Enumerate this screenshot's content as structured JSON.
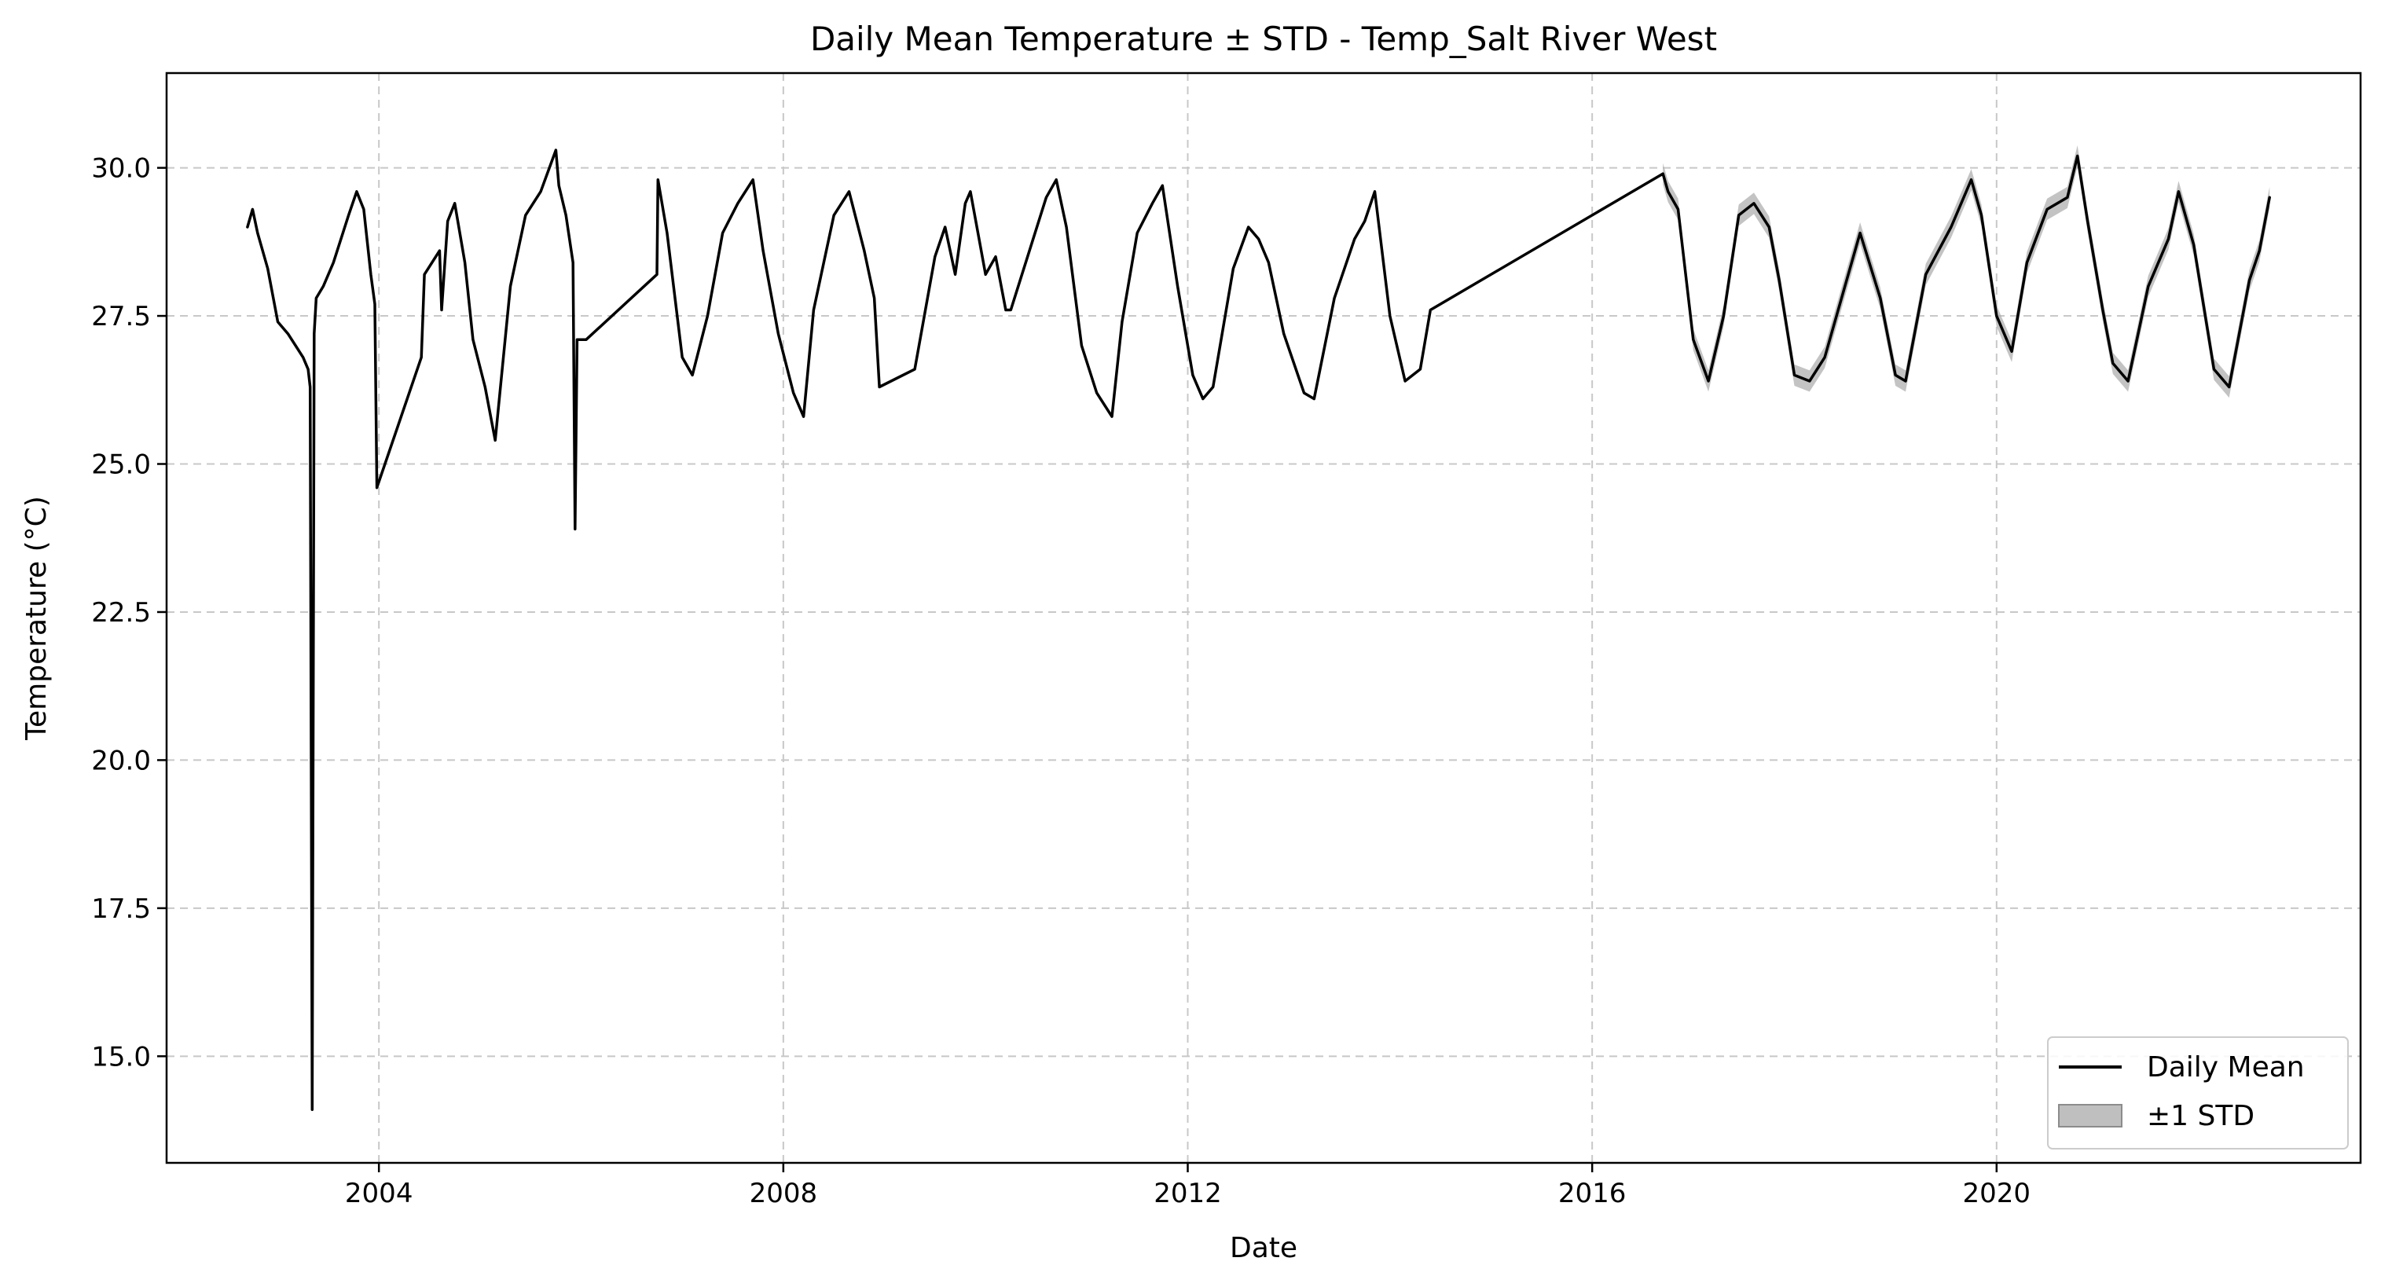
{
  "chart_data": {
    "type": "line",
    "title": "Daily Mean Temperature ± STD - Temp_Salt River West",
    "xlabel": "Date",
    "ylabel": "Temperature (°C)",
    "xlim": [
      2001.9,
      2023.6
    ],
    "ylim": [
      13.2,
      31.6
    ],
    "xticks": [
      2004,
      2008,
      2012,
      2016,
      2020
    ],
    "xtick_labels": [
      "2004",
      "2008",
      "2012",
      "2016",
      "2020"
    ],
    "yticks": [
      15.0,
      17.5,
      20.0,
      22.5,
      25.0,
      27.5,
      30.0
    ],
    "ytick_labels": [
      "15.0",
      "17.5",
      "20.0",
      "22.5",
      "25.0",
      "27.5",
      "30.0"
    ],
    "grid": true,
    "legend_position": "lower-right",
    "colors": {
      "mean_line": "#000000",
      "std_band": "#a9a9a9"
    },
    "series": [
      {
        "name": "Daily Mean",
        "x": [
          2002.7,
          2002.75,
          2002.8,
          2002.9,
          2003.0,
          2003.1,
          2003.25,
          2003.3,
          2003.32,
          2003.34,
          2003.36,
          2003.38,
          2003.45,
          2003.55,
          2003.7,
          2003.78,
          2003.85,
          2003.92,
          2003.96,
          2003.98,
          2004.42,
          2004.45,
          2004.6,
          2004.62,
          2004.68,
          2004.75,
          2004.85,
          2004.93,
          2005.05,
          2005.15,
          2005.3,
          2005.45,
          2005.6,
          2005.75,
          2005.78,
          2005.85,
          2005.92,
          2005.94,
          2005.96,
          2006.05,
          2006.75,
          2006.76,
          2006.85,
          2007.0,
          2007.1,
          2007.25,
          2007.4,
          2007.55,
          2007.7,
          2007.8,
          2007.95,
          2008.1,
          2008.2,
          2008.3,
          2008.5,
          2008.65,
          2008.8,
          2008.9,
          2008.95,
          2009.3,
          2009.5,
          2009.6,
          2009.7,
          2009.8,
          2009.85,
          2010.0,
          2010.1,
          2010.2,
          2010.25,
          2010.6,
          2010.7,
          2010.8,
          2010.95,
          2011.1,
          2011.25,
          2011.35,
          2011.5,
          2011.65,
          2011.75,
          2011.9,
          2012.05,
          2012.15,
          2012.25,
          2012.45,
          2012.6,
          2012.7,
          2012.8,
          2012.95,
          2013.15,
          2013.25,
          2013.45,
          2013.65,
          2013.75,
          2013.85,
          2014.0,
          2014.15,
          2014.3,
          2014.4,
          2016.7,
          2016.75,
          2016.85,
          2017.0,
          2017.15,
          2017.3,
          2017.45,
          2017.6,
          2017.75,
          2017.85,
          2018.0,
          2018.15,
          2018.3,
          2018.5,
          2018.65,
          2018.85,
          2019.0,
          2019.1,
          2019.3,
          2019.55,
          2019.75,
          2019.85,
          2020.0,
          2020.15,
          2020.3,
          2020.5,
          2020.7,
          2020.8,
          2020.9,
          2021.05,
          2021.15,
          2021.3,
          2021.5,
          2021.7,
          2021.8,
          2021.95,
          2022.15,
          2022.3,
          2022.5,
          2022.6,
          2022.7
        ],
        "y": [
          29.0,
          29.3,
          28.9,
          28.3,
          27.4,
          27.2,
          26.8,
          26.6,
          26.3,
          14.1,
          27.2,
          27.8,
          28.0,
          28.4,
          29.2,
          29.6,
          29.3,
          28.2,
          27.7,
          24.6,
          26.8,
          28.2,
          28.6,
          27.6,
          29.1,
          29.4,
          28.4,
          27.1,
          26.3,
          25.4,
          28.0,
          29.2,
          29.6,
          30.3,
          29.7,
          29.2,
          28.4,
          23.9,
          27.1,
          27.1,
          28.2,
          29.8,
          28.9,
          26.8,
          26.5,
          27.5,
          28.9,
          29.4,
          29.8,
          28.6,
          27.2,
          26.2,
          25.8,
          27.6,
          29.2,
          29.6,
          28.6,
          27.8,
          26.3,
          26.6,
          28.5,
          29.0,
          28.2,
          29.4,
          29.6,
          28.2,
          28.5,
          27.6,
          27.6,
          29.5,
          29.8,
          29.0,
          27.0,
          26.2,
          25.8,
          27.4,
          28.9,
          29.4,
          29.7,
          28.0,
          26.5,
          26.1,
          26.3,
          28.3,
          29.0,
          28.8,
          28.4,
          27.2,
          26.2,
          26.1,
          27.8,
          28.8,
          29.1,
          29.6,
          27.5,
          26.4,
          26.6,
          27.6,
          29.9,
          29.6,
          29.3,
          27.1,
          26.4,
          27.5,
          29.2,
          29.4,
          29.0,
          28.1,
          26.5,
          26.4,
          26.8,
          28.0,
          28.9,
          27.8,
          26.5,
          26.4,
          28.2,
          29.0,
          29.8,
          29.2,
          27.5,
          26.9,
          28.4,
          29.3,
          29.5,
          30.2,
          29.1,
          27.6,
          26.7,
          26.4,
          28.0,
          28.8,
          29.6,
          28.7,
          26.6,
          26.3,
          28.1,
          28.6,
          29.5
        ]
      },
      {
        "name": "±1 STD",
        "std": 0.18,
        "std_start_x": 2016.7
      }
    ]
  }
}
